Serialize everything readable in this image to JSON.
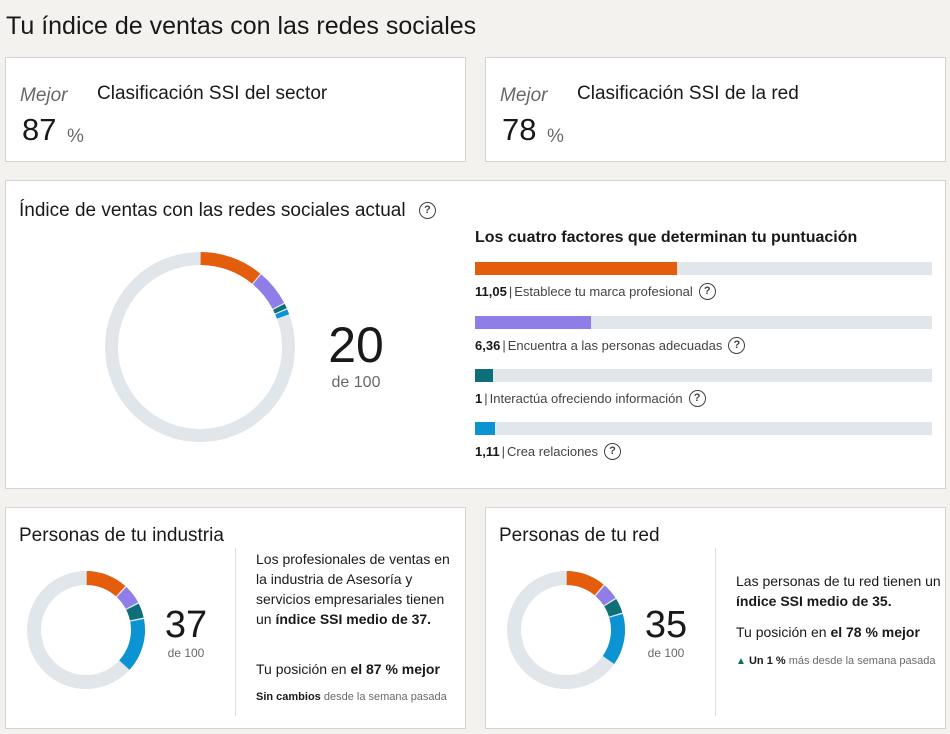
{
  "page": {
    "title": "Tu índice de ventas con las redes sociales"
  },
  "rankings": [
    {
      "label": "Mejor",
      "title": "Clasificación SSI del sector",
      "value": "87",
      "unit": "%"
    },
    {
      "label": "Mejor",
      "title": "Clasificación SSI de la red",
      "value": "78",
      "unit": "%"
    }
  ],
  "current": {
    "title": "Índice de ventas con las redes sociales actual",
    "score": "20",
    "out_of": "de 100",
    "help_icon": "question-circle-icon",
    "factors_title": "Los cuatro factores que determinan tu puntuación",
    "factors": [
      {
        "value": "11,05",
        "label": "Establece tu marca profesional",
        "fraction": 0.442,
        "color": "#e35d0c"
      },
      {
        "value": "6,36",
        "label": "Encuentra a las personas adecuadas",
        "fraction": 0.254,
        "color": "#8f7ee7"
      },
      {
        "value": "1",
        "label": "Interactúa ofreciendo información",
        "fraction": 0.04,
        "color": "#0d6f78"
      },
      {
        "value": "1,11",
        "label": "Crea relaciones",
        "fraction": 0.044,
        "color": "#0b94d1"
      }
    ],
    "track_color": "#e1e6eb"
  },
  "industry": {
    "title": "Personas de tu industria",
    "score": "37",
    "out_of": "de 100",
    "segments": [
      11.8,
      5.6,
      4.4,
      15.2
    ],
    "desc_pre": "Los profesionales de ventas en la industria de Asesoría y servicios empresariales tienen un ",
    "desc_bold": "índice SSI medio de 37.",
    "position_pre": "Tu posición en ",
    "position_bold": "el 87 % mejor",
    "change_bold": "Sin cambios",
    "change_rest": " desde la semana pasada"
  },
  "network": {
    "title": "Personas de tu red",
    "score": "35",
    "out_of": "de 100",
    "segments": [
      11.2,
      4.8,
      4.4,
      14.6
    ],
    "desc_pre": "Las personas de tu red tienen un ",
    "desc_bold": "índice SSI medio de 35.",
    "position_pre": "Tu posición en ",
    "position_bold": "el 78 % mejor",
    "change_arrow": "▲",
    "change_bold": "Un 1 %",
    "change_rest": " más desde la semana pasada"
  },
  "colors": [
    "#e35d0c",
    "#8f7ee7",
    "#0d6f78",
    "#0b94d1"
  ]
}
